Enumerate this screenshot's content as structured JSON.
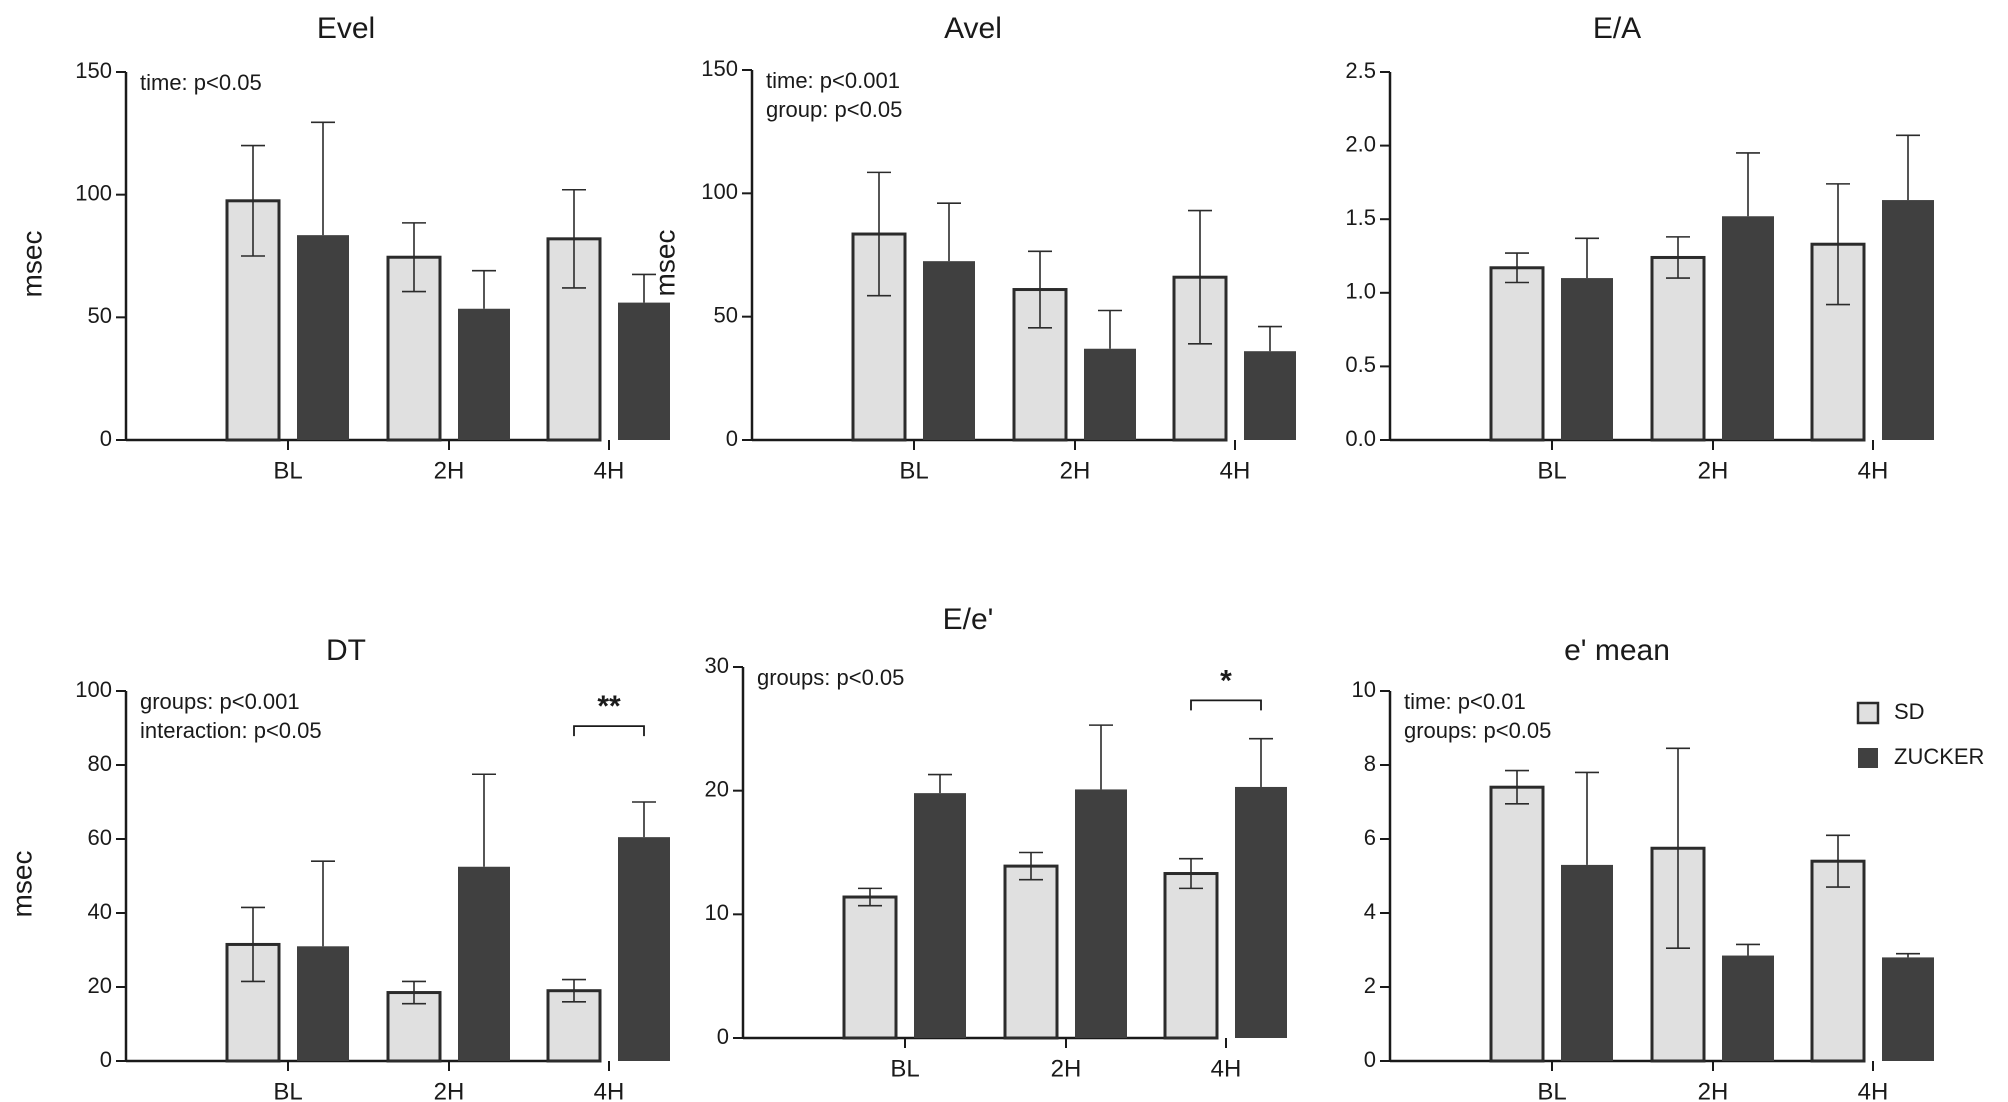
{
  "colors": {
    "sd": "#e0e0e0",
    "zucker": "#404040",
    "stroke": "#2b2b2b"
  },
  "legend": [
    {
      "key": "sd",
      "label": "SD"
    },
    {
      "key": "zucker",
      "label": "ZUCKER"
    }
  ],
  "chart_data": [
    {
      "id": "evel",
      "type": "bar",
      "title": "Evel",
      "ylabel": "msec",
      "categories": [
        "BL",
        "2H",
        "4H"
      ],
      "ylim": [
        0,
        150
      ],
      "yticks": [
        0,
        50,
        100,
        150
      ],
      "ytick_labels": [
        "0",
        "50",
        "100",
        "150"
      ],
      "annotations": [
        "time: p<0.05"
      ],
      "series": [
        {
          "name": "SD",
          "key": "sd",
          "values": [
            97.5,
            74.5,
            82
          ],
          "err": [
            22.5,
            14,
            20
          ]
        },
        {
          "name": "ZUCKER",
          "key": "zucker",
          "values": [
            83.5,
            53.5,
            56
          ],
          "err": [
            46,
            15.5,
            11.5
          ]
        }
      ],
      "significance": []
    },
    {
      "id": "avel",
      "type": "bar",
      "title": "Avel",
      "ylabel": "msec",
      "categories": [
        "BL",
        "2H",
        "4H"
      ],
      "ylim": [
        0,
        150
      ],
      "yticks": [
        0,
        50,
        100,
        150
      ],
      "ytick_labels": [
        "0",
        "50",
        "100",
        "150"
      ],
      "annotations": [
        "time: p<0.001",
        "group: p<0.05"
      ],
      "series": [
        {
          "name": "SD",
          "key": "sd",
          "values": [
            83.5,
            61,
            66
          ],
          "err": [
            25,
            15.5,
            27
          ]
        },
        {
          "name": "ZUCKER",
          "key": "zucker",
          "values": [
            72.5,
            37,
            36
          ],
          "err": [
            23.5,
            15.5,
            10
          ]
        }
      ],
      "significance": []
    },
    {
      "id": "ea",
      "type": "bar",
      "title": "E/A",
      "ylabel": "",
      "categories": [
        "BL",
        "2H",
        "4H"
      ],
      "ylim": [
        0,
        2.5
      ],
      "yticks": [
        0,
        0.5,
        1,
        1.5,
        2,
        2.5
      ],
      "ytick_labels": [
        "0.0",
        "0.5",
        "1.0",
        "1.5",
        "2.0",
        "2.5"
      ],
      "annotations": [],
      "series": [
        {
          "name": "SD",
          "key": "sd",
          "values": [
            1.17,
            1.24,
            1.33
          ],
          "err": [
            0.1,
            0.14,
            0.41
          ]
        },
        {
          "name": "ZUCKER",
          "key": "zucker",
          "values": [
            1.1,
            1.52,
            1.63
          ],
          "err": [
            0.27,
            0.43,
            0.44
          ]
        }
      ],
      "significance": []
    },
    {
      "id": "dt",
      "type": "bar",
      "title": "DT",
      "ylabel": "msec",
      "categories": [
        "BL",
        "2H",
        "4H"
      ],
      "ylim": [
        0,
        100
      ],
      "yticks": [
        0,
        20,
        40,
        60,
        80,
        100
      ],
      "ytick_labels": [
        "0",
        "20",
        "40",
        "60",
        "80",
        "100"
      ],
      "annotations": [
        "groups: p<0.001",
        "interaction: p<0.05"
      ],
      "series": [
        {
          "name": "SD",
          "key": "sd",
          "values": [
            31.5,
            18.5,
            19
          ],
          "err": [
            10,
            3,
            3
          ]
        },
        {
          "name": "ZUCKER",
          "key": "zucker",
          "values": [
            31,
            52.5,
            60.5
          ],
          "err": [
            23,
            25,
            9.5
          ]
        }
      ],
      "significance": [
        {
          "category": 2,
          "label": "**",
          "y": 90.5
        }
      ]
    },
    {
      "id": "ee",
      "type": "bar",
      "title": "E/e'",
      "ylabel": "",
      "categories": [
        "BL",
        "2H",
        "4H"
      ],
      "ylim": [
        0,
        30
      ],
      "yticks": [
        0,
        10,
        20,
        30
      ],
      "ytick_labels": [
        "0",
        "10",
        "20",
        "30"
      ],
      "annotations": [
        "groups: p<0.05"
      ],
      "series": [
        {
          "name": "SD",
          "key": "sd",
          "values": [
            11.4,
            13.9,
            13.3
          ],
          "err": [
            0.7,
            1.1,
            1.2
          ]
        },
        {
          "name": "ZUCKER",
          "key": "zucker",
          "values": [
            19.8,
            20.1,
            20.3
          ],
          "err": [
            1.5,
            5.2,
            3.9
          ]
        }
      ],
      "significance": [
        {
          "category": 2,
          "label": "*",
          "y": 27.3
        }
      ]
    },
    {
      "id": "emean",
      "type": "bar",
      "title": "e' mean",
      "ylabel": "",
      "categories": [
        "BL",
        "2H",
        "4H"
      ],
      "ylim": [
        0,
        10
      ],
      "yticks": [
        0,
        2,
        4,
        6,
        8,
        10
      ],
      "ytick_labels": [
        "0",
        "2",
        "4",
        "6",
        "8",
        "10"
      ],
      "annotations": [
        "time: p<0.01",
        "groups: p<0.05"
      ],
      "series": [
        {
          "name": "SD",
          "key": "sd",
          "values": [
            7.4,
            5.75,
            5.4
          ],
          "err": [
            0.45,
            2.7,
            0.7
          ]
        },
        {
          "name": "ZUCKER",
          "key": "zucker",
          "values": [
            5.3,
            2.85,
            2.8
          ],
          "err": [
            2.5,
            0.3,
            0.1
          ]
        }
      ],
      "significance": []
    }
  ]
}
